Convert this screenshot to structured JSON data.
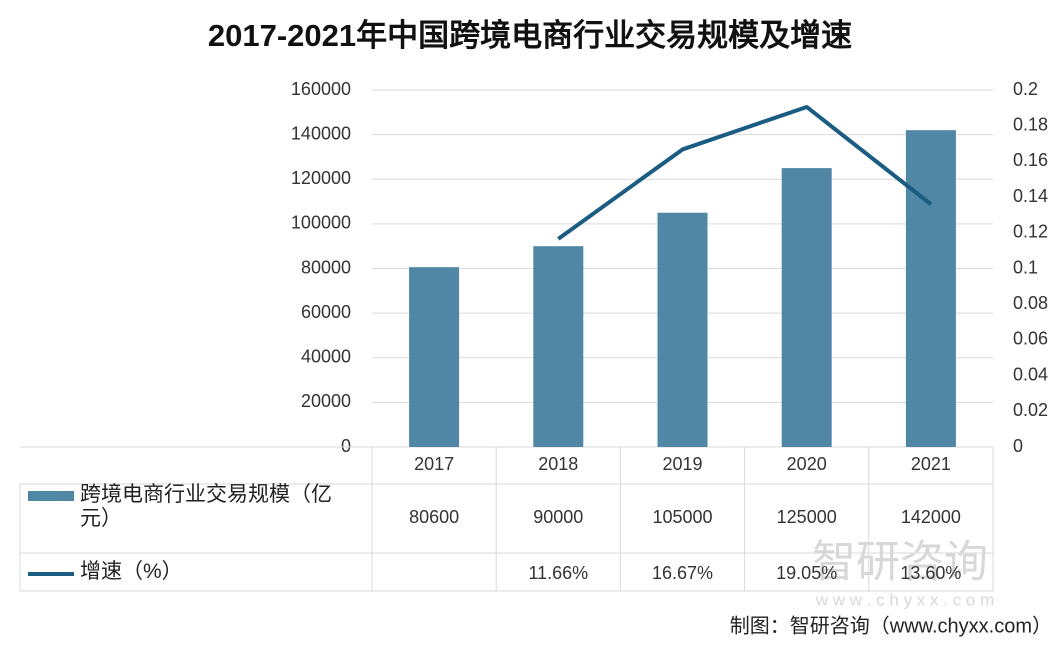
{
  "chart_data": {
    "type": "bar",
    "title": "2017-2021年中国跨境电商行业交易规模及增速",
    "categories": [
      "2017",
      "2018",
      "2019",
      "2020",
      "2021"
    ],
    "series": [
      {
        "name": "跨境电商行业交易规模（亿元）",
        "type": "bar",
        "color": "#4f87a4",
        "values": [
          80600,
          90000,
          105000,
          125000,
          142000
        ]
      },
      {
        "name": "增速（%）",
        "type": "line",
        "axis": "y2",
        "color": "#1a5c82",
        "values": [
          null,
          0.1166,
          0.1667,
          0.1905,
          0.136
        ],
        "value_labels": [
          null,
          "11.66%",
          "16.67%",
          "19.05%",
          "13.60%"
        ]
      }
    ],
    "ylim": [
      0,
      160000
    ],
    "yticks": [
      0,
      20000,
      40000,
      60000,
      80000,
      100000,
      120000,
      140000,
      160000
    ],
    "y2lim": [
      0,
      0.2
    ],
    "y2ticks": [
      0,
      0.02,
      0.04,
      0.06,
      0.08,
      0.1,
      0.12,
      0.14,
      0.16,
      0.18,
      0.2
    ],
    "grid": true,
    "watermark": [
      "智研咨询",
      "w w w . c h y x x . c o m"
    ],
    "source": "制图：智研咨询（www.chyxx.com）"
  }
}
